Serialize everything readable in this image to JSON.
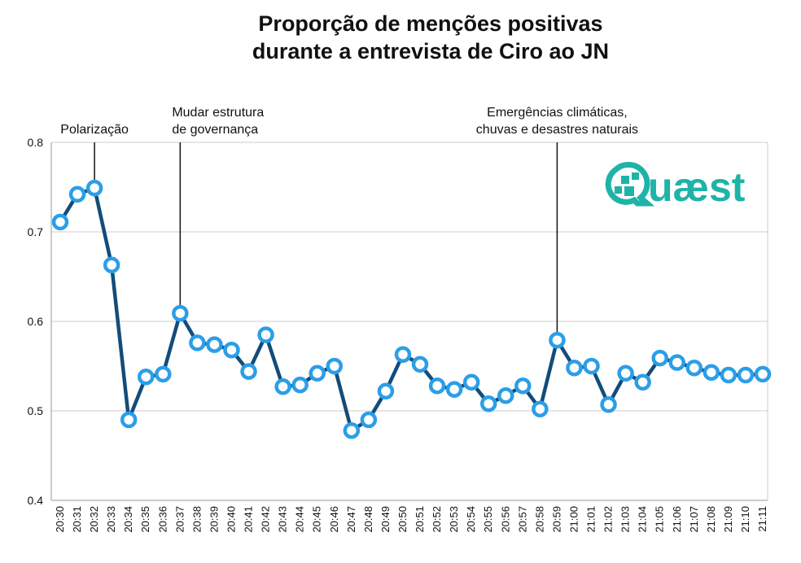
{
  "chart_data": {
    "type": "line",
    "title": [
      "Proporção de menções positivas",
      "durante a entrevista de Ciro ao JN"
    ],
    "xlabel": "",
    "ylabel": "",
    "ylim": [
      0.4,
      0.8
    ],
    "yticks": [
      "0.4",
      "0.5",
      "0.6",
      "0.7",
      "0.8"
    ],
    "grid": true,
    "categories": [
      "20:30",
      "20:31",
      "20:32",
      "20:33",
      "20:34",
      "20:35",
      "20:36",
      "20:37",
      "20:38",
      "20:39",
      "20:40",
      "20:41",
      "20:42",
      "20:43",
      "20:44",
      "20:45",
      "20:46",
      "20:47",
      "20:48",
      "20:49",
      "20:50",
      "20:51",
      "20:52",
      "20:53",
      "20:54",
      "20:55",
      "20:56",
      "20:57",
      "20:58",
      "20:59",
      "21:00",
      "21:01",
      "21:02",
      "21:03",
      "21:04",
      "21:05",
      "21:06",
      "21:07",
      "21:08",
      "21:09",
      "21:10",
      "21:11"
    ],
    "values": [
      0.711,
      0.742,
      0.749,
      0.663,
      0.49,
      0.538,
      0.541,
      0.609,
      0.576,
      0.574,
      0.568,
      0.544,
      0.585,
      0.527,
      0.529,
      0.542,
      0.55,
      0.478,
      0.49,
      0.522,
      0.563,
      0.552,
      0.528,
      0.524,
      0.532,
      0.508,
      0.517,
      0.528,
      0.502,
      0.579,
      0.548,
      0.55,
      0.507,
      0.542,
      0.532,
      0.559,
      0.554,
      0.548,
      0.543,
      0.54,
      0.54,
      0.541
    ],
    "annotations": [
      {
        "category": "20:32",
        "lines": [
          "Polarização"
        ]
      },
      {
        "category": "20:37",
        "lines": [
          "Mudar estrutura",
          "de governança"
        ]
      },
      {
        "category": "20:59",
        "lines": [
          "Emergências climáticas,",
          "chuvas e desastres naturais"
        ]
      }
    ],
    "colors": {
      "line": "#134c7a",
      "marker_edge": "#2b9ee8",
      "marker_fill": "#ffffff",
      "grid": "#cccccc",
      "logo": "#1fb3a8"
    }
  },
  "logo": {
    "text": "Quæst"
  }
}
